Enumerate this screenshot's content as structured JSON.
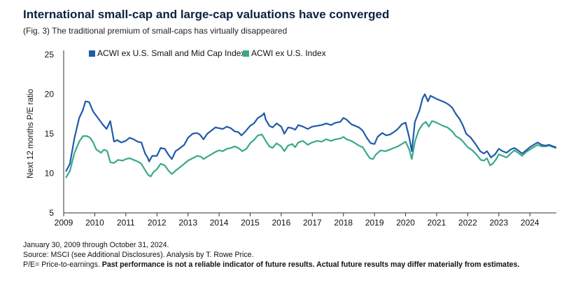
{
  "title": "International small-cap and large-cap valuations have converged",
  "subtitle": "(Fig. 3) The traditional premium of small-caps has virtually disappeared",
  "footer": {
    "line1": "January 30, 2009 through October 31, 2024.",
    "line2": "Source: MSCI (see Additional Disclosures). Analysis by T. Rowe Price.",
    "line3_prefix": "P/E= Price-to-earnings. ",
    "line3_bold": "Past performance is not a reliable indicator of future results. Actual future results may differ materially from estimates."
  },
  "colors": {
    "small_mid": "#1f5ba8",
    "large": "#3aa88a",
    "axis": "#333333"
  },
  "chart_data": {
    "type": "line",
    "title": "International small-cap and large-cap valuations have converged",
    "xlabel": "",
    "ylabel": "Next 12 months P/E ratio",
    "ylim": [
      5,
      25
    ],
    "yticks": [
      5,
      10,
      15,
      20,
      25
    ],
    "xlim": [
      2009.0,
      2024.85
    ],
    "xticks": [
      "2009",
      "2010",
      "2011",
      "2012",
      "2013",
      "2014",
      "2015",
      "2016",
      "2017",
      "2018",
      "2019",
      "2020",
      "2021",
      "2022",
      "2023",
      "2024"
    ],
    "legend": "top-left",
    "series": [
      {
        "name": "ACWI ex U.S. Small and Mid Cap Index",
        "color": "#1f5ba8",
        "points": [
          [
            2009.08,
            10.3
          ],
          [
            2009.2,
            11.2
          ],
          [
            2009.35,
            14.5
          ],
          [
            2009.5,
            17.0
          ],
          [
            2009.62,
            18.0
          ],
          [
            2009.7,
            19.1
          ],
          [
            2009.82,
            19.0
          ],
          [
            2009.95,
            17.8
          ],
          [
            2010.1,
            17.0
          ],
          [
            2010.25,
            16.2
          ],
          [
            2010.38,
            15.6
          ],
          [
            2010.5,
            16.6
          ],
          [
            2010.62,
            14.0
          ],
          [
            2010.72,
            14.2
          ],
          [
            2010.85,
            13.9
          ],
          [
            2011.0,
            14.1
          ],
          [
            2011.12,
            14.5
          ],
          [
            2011.25,
            14.3
          ],
          [
            2011.38,
            14.0
          ],
          [
            2011.5,
            13.9
          ],
          [
            2011.62,
            12.5
          ],
          [
            2011.7,
            12.0
          ],
          [
            2011.75,
            11.5
          ],
          [
            2011.85,
            12.2
          ],
          [
            2012.0,
            12.2
          ],
          [
            2012.12,
            13.2
          ],
          [
            2012.25,
            13.1
          ],
          [
            2012.38,
            12.3
          ],
          [
            2012.48,
            11.8
          ],
          [
            2012.6,
            12.8
          ],
          [
            2012.75,
            13.2
          ],
          [
            2012.88,
            13.6
          ],
          [
            2013.0,
            14.5
          ],
          [
            2013.15,
            15.0
          ],
          [
            2013.28,
            15.1
          ],
          [
            2013.38,
            14.9
          ],
          [
            2013.5,
            14.3
          ],
          [
            2013.62,
            15.0
          ],
          [
            2013.75,
            15.4
          ],
          [
            2013.88,
            15.8
          ],
          [
            2014.0,
            15.7
          ],
          [
            2014.12,
            15.6
          ],
          [
            2014.25,
            15.9
          ],
          [
            2014.38,
            15.7
          ],
          [
            2014.5,
            15.3
          ],
          [
            2014.62,
            15.2
          ],
          [
            2014.72,
            14.8
          ],
          [
            2014.85,
            15.3
          ],
          [
            2015.0,
            16.0
          ],
          [
            2015.12,
            16.3
          ],
          [
            2015.25,
            17.0
          ],
          [
            2015.38,
            17.3
          ],
          [
            2015.45,
            17.6
          ],
          [
            2015.5,
            16.8
          ],
          [
            2015.62,
            16.0
          ],
          [
            2015.72,
            15.8
          ],
          [
            2015.85,
            16.3
          ],
          [
            2016.0,
            15.9
          ],
          [
            2016.1,
            15.0
          ],
          [
            2016.22,
            15.8
          ],
          [
            2016.35,
            15.7
          ],
          [
            2016.45,
            15.5
          ],
          [
            2016.55,
            16.1
          ],
          [
            2016.7,
            15.9
          ],
          [
            2016.85,
            15.6
          ],
          [
            2017.0,
            15.9
          ],
          [
            2017.15,
            16.0
          ],
          [
            2017.3,
            16.1
          ],
          [
            2017.45,
            16.3
          ],
          [
            2017.6,
            16.1
          ],
          [
            2017.75,
            16.4
          ],
          [
            2017.9,
            16.5
          ],
          [
            2018.0,
            17.0
          ],
          [
            2018.1,
            16.8
          ],
          [
            2018.25,
            16.2
          ],
          [
            2018.38,
            16.0
          ],
          [
            2018.5,
            15.8
          ],
          [
            2018.62,
            15.4
          ],
          [
            2018.75,
            14.5
          ],
          [
            2018.88,
            13.8
          ],
          [
            2019.0,
            13.7
          ],
          [
            2019.1,
            14.6
          ],
          [
            2019.25,
            15.1
          ],
          [
            2019.38,
            14.8
          ],
          [
            2019.5,
            14.9
          ],
          [
            2019.62,
            15.2
          ],
          [
            2019.75,
            15.6
          ],
          [
            2019.88,
            16.2
          ],
          [
            2020.0,
            16.4
          ],
          [
            2020.12,
            14.5
          ],
          [
            2020.2,
            12.8
          ],
          [
            2020.3,
            16.5
          ],
          [
            2020.45,
            18.0
          ],
          [
            2020.55,
            19.5
          ],
          [
            2020.62,
            20.0
          ],
          [
            2020.72,
            19.1
          ],
          [
            2020.8,
            19.8
          ],
          [
            2020.9,
            19.6
          ],
          [
            2021.0,
            19.4
          ],
          [
            2021.12,
            19.2
          ],
          [
            2021.25,
            19.0
          ],
          [
            2021.38,
            18.7
          ],
          [
            2021.5,
            18.3
          ],
          [
            2021.62,
            17.5
          ],
          [
            2021.75,
            16.8
          ],
          [
            2021.85,
            16.0
          ],
          [
            2021.95,
            15.0
          ],
          [
            2022.1,
            14.5
          ],
          [
            2022.25,
            13.7
          ],
          [
            2022.4,
            12.8
          ],
          [
            2022.52,
            12.5
          ],
          [
            2022.62,
            12.8
          ],
          [
            2022.75,
            12.0
          ],
          [
            2022.88,
            12.4
          ],
          [
            2023.0,
            13.1
          ],
          [
            2023.12,
            12.8
          ],
          [
            2023.25,
            12.6
          ],
          [
            2023.38,
            13.0
          ],
          [
            2023.5,
            13.2
          ],
          [
            2023.62,
            12.9
          ],
          [
            2023.75,
            12.5
          ],
          [
            2023.88,
            12.9
          ],
          [
            2024.0,
            13.3
          ],
          [
            2024.12,
            13.6
          ],
          [
            2024.25,
            13.9
          ],
          [
            2024.38,
            13.6
          ],
          [
            2024.5,
            13.5
          ],
          [
            2024.62,
            13.6
          ],
          [
            2024.75,
            13.4
          ],
          [
            2024.83,
            13.3
          ]
        ]
      },
      {
        "name": "ACWI ex U.S. Index",
        "color": "#3aa88a",
        "points": [
          [
            2009.08,
            9.5
          ],
          [
            2009.2,
            10.3
          ],
          [
            2009.35,
            12.6
          ],
          [
            2009.5,
            14.0
          ],
          [
            2009.62,
            14.7
          ],
          [
            2009.75,
            14.7
          ],
          [
            2009.85,
            14.5
          ],
          [
            2009.95,
            13.9
          ],
          [
            2010.05,
            13.0
          ],
          [
            2010.2,
            12.6
          ],
          [
            2010.3,
            13.0
          ],
          [
            2010.4,
            12.8
          ],
          [
            2010.5,
            11.4
          ],
          [
            2010.62,
            11.3
          ],
          [
            2010.75,
            11.7
          ],
          [
            2010.9,
            11.6
          ],
          [
            2011.0,
            11.8
          ],
          [
            2011.12,
            11.9
          ],
          [
            2011.25,
            11.7
          ],
          [
            2011.38,
            11.5
          ],
          [
            2011.5,
            11.2
          ],
          [
            2011.62,
            10.4
          ],
          [
            2011.72,
            9.8
          ],
          [
            2011.8,
            9.6
          ],
          [
            2011.9,
            10.2
          ],
          [
            2012.0,
            10.5
          ],
          [
            2012.12,
            11.2
          ],
          [
            2012.25,
            11.0
          ],
          [
            2012.38,
            10.3
          ],
          [
            2012.48,
            9.9
          ],
          [
            2012.62,
            10.4
          ],
          [
            2012.75,
            10.8
          ],
          [
            2012.88,
            11.2
          ],
          [
            2013.0,
            11.6
          ],
          [
            2013.15,
            11.9
          ],
          [
            2013.3,
            12.2
          ],
          [
            2013.42,
            12.1
          ],
          [
            2013.5,
            11.8
          ],
          [
            2013.62,
            12.1
          ],
          [
            2013.75,
            12.4
          ],
          [
            2013.88,
            12.7
          ],
          [
            2014.0,
            12.9
          ],
          [
            2014.12,
            12.8
          ],
          [
            2014.25,
            13.1
          ],
          [
            2014.38,
            13.2
          ],
          [
            2014.5,
            13.4
          ],
          [
            2014.62,
            13.2
          ],
          [
            2014.75,
            12.8
          ],
          [
            2014.88,
            13.1
          ],
          [
            2015.0,
            13.8
          ],
          [
            2015.12,
            14.2
          ],
          [
            2015.25,
            14.8
          ],
          [
            2015.38,
            14.9
          ],
          [
            2015.5,
            14.1
          ],
          [
            2015.62,
            13.4
          ],
          [
            2015.72,
            13.2
          ],
          [
            2015.85,
            13.8
          ],
          [
            2016.0,
            13.4
          ],
          [
            2016.1,
            12.8
          ],
          [
            2016.22,
            13.5
          ],
          [
            2016.35,
            13.7
          ],
          [
            2016.45,
            13.3
          ],
          [
            2016.55,
            13.9
          ],
          [
            2016.7,
            14.1
          ],
          [
            2016.85,
            13.6
          ],
          [
            2017.0,
            13.9
          ],
          [
            2017.15,
            14.1
          ],
          [
            2017.3,
            14.0
          ],
          [
            2017.45,
            14.3
          ],
          [
            2017.6,
            14.1
          ],
          [
            2017.75,
            14.3
          ],
          [
            2017.9,
            14.4
          ],
          [
            2018.0,
            14.6
          ],
          [
            2018.1,
            14.3
          ],
          [
            2018.25,
            14.1
          ],
          [
            2018.38,
            13.8
          ],
          [
            2018.5,
            13.5
          ],
          [
            2018.62,
            13.3
          ],
          [
            2018.75,
            12.5
          ],
          [
            2018.85,
            11.9
          ],
          [
            2018.95,
            11.8
          ],
          [
            2019.05,
            12.4
          ],
          [
            2019.2,
            12.9
          ],
          [
            2019.35,
            12.8
          ],
          [
            2019.5,
            13.0
          ],
          [
            2019.62,
            13.2
          ],
          [
            2019.75,
            13.4
          ],
          [
            2019.88,
            13.7
          ],
          [
            2020.0,
            14.0
          ],
          [
            2020.12,
            13.0
          ],
          [
            2020.2,
            11.8
          ],
          [
            2020.3,
            14.0
          ],
          [
            2020.42,
            15.4
          ],
          [
            2020.55,
            16.2
          ],
          [
            2020.65,
            16.5
          ],
          [
            2020.75,
            15.9
          ],
          [
            2020.85,
            16.6
          ],
          [
            2020.95,
            16.5
          ],
          [
            2021.05,
            16.3
          ],
          [
            2021.2,
            16.0
          ],
          [
            2021.35,
            15.8
          ],
          [
            2021.5,
            15.3
          ],
          [
            2021.62,
            14.7
          ],
          [
            2021.75,
            14.4
          ],
          [
            2021.85,
            14.0
          ],
          [
            2022.0,
            13.3
          ],
          [
            2022.15,
            12.9
          ],
          [
            2022.3,
            12.3
          ],
          [
            2022.42,
            11.7
          ],
          [
            2022.52,
            11.6
          ],
          [
            2022.62,
            11.9
          ],
          [
            2022.72,
            11.0
          ],
          [
            2022.8,
            11.2
          ],
          [
            2022.9,
            11.7
          ],
          [
            2023.0,
            12.4
          ],
          [
            2023.12,
            12.2
          ],
          [
            2023.25,
            12.0
          ],
          [
            2023.38,
            12.5
          ],
          [
            2023.5,
            12.9
          ],
          [
            2023.62,
            12.6
          ],
          [
            2023.75,
            12.2
          ],
          [
            2023.88,
            12.7
          ],
          [
            2024.0,
            13.0
          ],
          [
            2024.12,
            13.3
          ],
          [
            2024.25,
            13.6
          ],
          [
            2024.38,
            13.4
          ],
          [
            2024.5,
            13.4
          ],
          [
            2024.62,
            13.5
          ],
          [
            2024.75,
            13.3
          ],
          [
            2024.83,
            13.2
          ]
        ]
      }
    ]
  }
}
